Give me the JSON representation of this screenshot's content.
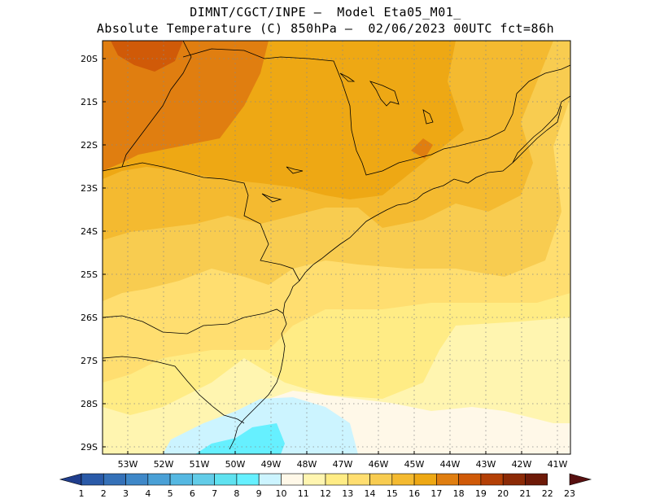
{
  "title": {
    "line1": "DIMNT/CGCT/INPE –  Model Eta05_M01_",
    "line2": "Absolute Temperature (C) 850hPa –  02/06/2023 00UTC fct=86h"
  },
  "map": {
    "lat_labels": [
      "20S",
      "21S",
      "22S",
      "23S",
      "24S",
      "25S",
      "26S",
      "27S",
      "28S",
      "29S"
    ],
    "lon_labels": [
      "53W",
      "52W",
      "51W",
      "50W",
      "49W",
      "48W",
      "47W",
      "46W",
      "45W",
      "44W",
      "43W",
      "42W",
      "41W"
    ]
  },
  "colorbar": {
    "labels": [
      "1",
      "2",
      "3",
      "4",
      "5",
      "6",
      "7",
      "8",
      "9",
      "10",
      "11",
      "12",
      "13",
      "14",
      "15",
      "16",
      "17",
      "18",
      "19",
      "20",
      "21",
      "22",
      "23"
    ],
    "colors": [
      "#1f3d8c",
      "#2a5aa8",
      "#3571b8",
      "#3f88c8",
      "#4aa0d6",
      "#55b8e2",
      "#62cce8",
      "#5fe2f0",
      "#66f0ff",
      "#ccf4ff",
      "#fff8e8",
      "#fff5b0",
      "#ffec85",
      "#ffde70",
      "#f8cc50",
      "#f4ba30",
      "#eea814",
      "#e07e10",
      "#d05a08",
      "#b44006",
      "#8c2a06",
      "#6e1a08",
      "#581010"
    ]
  },
  "field_colors": {
    "t11": "#fff8e8",
    "t10": "#ccf4ff",
    "t9": "#66f0ff",
    "t12": "#fff5b0",
    "t13": "#ffec85",
    "t14": "#ffde70",
    "t15": "#f8cc50",
    "t16": "#f4ba30",
    "t17": "#eea814",
    "t18": "#e07e10",
    "t19": "#d05a08",
    "boundary": "#000000",
    "grid": "#888888"
  }
}
